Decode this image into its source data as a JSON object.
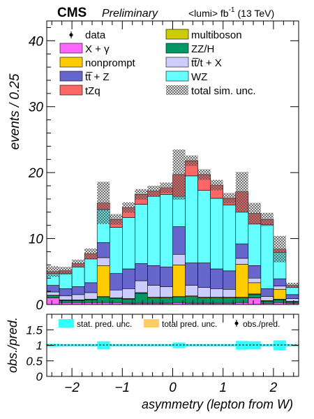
{
  "header": {
    "experiment": "CMS",
    "status": "Preliminary",
    "lumi": "<lumi> fb",
    "lumi_exp": "-1",
    "energy": "(13 TeV)"
  },
  "chart_data": [
    {
      "type": "bar",
      "stacked": true,
      "xlabel": "asymmetry (lepton from W)",
      "ylabel": "events / 0.25",
      "xlim": [
        -2.5,
        2.5
      ],
      "ylim": [
        0,
        43
      ],
      "legend": "top, two columns",
      "bin_edges": [
        -2.5,
        -2.25,
        -2.0,
        -1.75,
        -1.5,
        -1.25,
        -1.0,
        -0.75,
        -0.5,
        -0.25,
        0.0,
        0.25,
        0.5,
        0.75,
        1.0,
        1.25,
        1.5,
        1.75,
        2.0,
        2.25,
        2.5
      ],
      "x_ticks": [
        -2,
        -1,
        0,
        1,
        2
      ],
      "x_tick_labels": [
        "−2",
        "−1",
        "0",
        "1",
        "2"
      ],
      "y_ticks": [
        0,
        10,
        20,
        30,
        40
      ],
      "series": [
        {
          "name": "X + γ",
          "color": "#ff66ff",
          "values": [
            1.0,
            0.3,
            0.3,
            0.3,
            0.3,
            0.3,
            0.2,
            0.2,
            0.2,
            0.2,
            0.3,
            0.2,
            0.2,
            0.2,
            0.2,
            0.3,
            1.0,
            0.2,
            0.3,
            0.2
          ]
        },
        {
          "name": "ZZ/H",
          "color": "#009966",
          "values": [
            0.3,
            0.3,
            0.3,
            0.4,
            0.8,
            0.6,
            0.6,
            1.5,
            0.8,
            0.8,
            0.8,
            1.0,
            0.8,
            0.8,
            0.8,
            0.7,
            0.5,
            0.3,
            0.4,
            0.2
          ]
        },
        {
          "name": "multiboson",
          "color": "#cccc00",
          "values": [
            0.1,
            0.1,
            0.1,
            0.1,
            0.1,
            0.1,
            0.1,
            0.1,
            0.1,
            0.1,
            0.1,
            0.1,
            0.1,
            0.1,
            0.1,
            0.1,
            0.1,
            0.1,
            0.1,
            0.1
          ]
        },
        {
          "name": "nonprompt",
          "color": "#ffcc00",
          "values": [
            0,
            0,
            0,
            0,
            4.7,
            0,
            0,
            0,
            0,
            0,
            4.8,
            0,
            0,
            0,
            0,
            5.0,
            1.7,
            0,
            1.5,
            0
          ]
        },
        {
          "name": "tt̅/t + X",
          "color": "#ccccff",
          "values": [
            0.5,
            0.6,
            0.8,
            1.0,
            1.2,
            1.2,
            1.5,
            1.8,
            1.8,
            1.6,
            1.6,
            1.6,
            1.5,
            1.3,
            1.2,
            0.9,
            0.7,
            0.6,
            0.5,
            0.4
          ]
        },
        {
          "name": "tt̅ + Z",
          "color": "#6666cc",
          "values": [
            1.0,
            1.1,
            1.2,
            1.5,
            2.3,
            2.5,
            3.0,
            2.6,
            3.0,
            3.0,
            4.2,
            3.4,
            3.7,
            3.0,
            2.8,
            2.2,
            1.9,
            1.2,
            1.1,
            0.6
          ]
        },
        {
          "name": "WZ",
          "color": "#66ffff",
          "values": [
            1.8,
            2.3,
            3.0,
            3.6,
            5.0,
            7.0,
            7.8,
            9.0,
            10.5,
            11.0,
            4.6,
            13.2,
            11.0,
            10.7,
            10.0,
            4.8,
            6.3,
            9.7,
            4.0,
            1.1
          ]
        },
        {
          "name": "tZq",
          "color": "#ff6666",
          "values": [
            0.3,
            0.4,
            0.5,
            0.8,
            1.0,
            1.2,
            1.5,
            1.5,
            0.8,
            1.0,
            3.3,
            2.3,
            2.4,
            2.0,
            1.0,
            3.1,
            1.6,
            0.8,
            0.5,
            0.3
          ]
        }
      ],
      "series_legend_order": [
        "X + γ",
        "nonprompt",
        "tt̅ + Z",
        "tZq",
        "multiboson",
        "ZZ/H",
        "tt̅/t + X",
        "WZ"
      ],
      "total_sim_unc": {
        "name": "total sim. unc.",
        "half_width": [
          0.8,
          0.6,
          0.6,
          0.8,
          3.2,
          0.8,
          0.8,
          0.8,
          0.8,
          0.8,
          3.8,
          0.8,
          0.8,
          0.8,
          0.8,
          3.0,
          1.6,
          1.0,
          2.0,
          0.4
        ]
      },
      "data": {
        "name": "data"
      }
    },
    {
      "type": "ratio",
      "ylabel": "obs./pred.",
      "ylim": [
        0,
        2
      ],
      "y_ticks": [
        0,
        0.5,
        1,
        1.5
      ],
      "y_tick_labels": [
        "0",
        "0.5",
        "1",
        "1.5"
      ],
      "stat_unc": {
        "name": "stat. pred. unc.",
        "color": "#33ffff",
        "half_width": [
          0.05,
          0.04,
          0.04,
          0.04,
          0.13,
          0.04,
          0.04,
          0.04,
          0.04,
          0.04,
          0.09,
          0.04,
          0.04,
          0.04,
          0.04,
          0.14,
          0.13,
          0.04,
          0.16,
          0.04
        ]
      },
      "total_unc": {
        "name": "total pred. unc.",
        "color": "#ffcc66"
      },
      "ratio_points": {
        "name": "obs./pred."
      }
    }
  ]
}
